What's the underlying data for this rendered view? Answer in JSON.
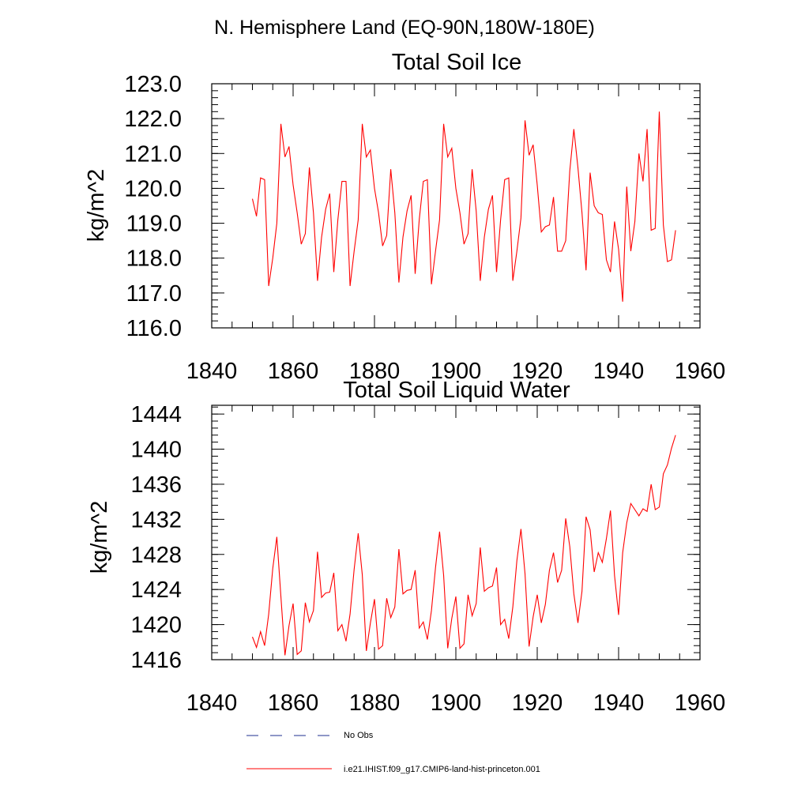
{
  "page_title": "N. Hemisphere Land (EQ-90N,180W-180E)",
  "colors": {
    "series": "#ff0000",
    "no_obs": "#1f2f8f",
    "axis": "#000000"
  },
  "legend": {
    "entries": [
      {
        "label": "No Obs",
        "style": "dashed",
        "color": "#1f2f8f"
      },
      {
        "label": "i.e21.IHIST.f09_g17.CMIP6-land-hist-princeton.001",
        "style": "solid",
        "color": "#ff0000"
      }
    ]
  },
  "chart_data": [
    {
      "type": "line",
      "title": "Total Soil Ice",
      "xlabel": "",
      "ylabel": "kg/m^2",
      "xlim": [
        1840,
        1960
      ],
      "ylim": [
        116,
        123
      ],
      "x_ticks": [
        1840,
        1860,
        1880,
        1900,
        1920,
        1940,
        1960
      ],
      "y_ticks": [
        "116.0",
        "117.0",
        "118.0",
        "119.0",
        "120.0",
        "121.0",
        "122.0",
        "123.0"
      ],
      "grid": false,
      "x": [
        1850,
        1851,
        1852,
        1853,
        1854,
        1855,
        1856,
        1857,
        1858,
        1859,
        1860,
        1861,
        1862,
        1863,
        1864,
        1865,
        1866,
        1867,
        1868,
        1869,
        1870,
        1871,
        1872,
        1873,
        1874,
        1875,
        1876,
        1877,
        1878,
        1879,
        1880,
        1881,
        1882,
        1883,
        1884,
        1885,
        1886,
        1887,
        1888,
        1889,
        1890,
        1891,
        1892,
        1893,
        1894,
        1895,
        1896,
        1897,
        1898,
        1899,
        1900,
        1901,
        1902,
        1903,
        1904,
        1905,
        1906,
        1907,
        1908,
        1909,
        1910,
        1911,
        1912,
        1913,
        1914,
        1915,
        1916,
        1917,
        1918,
        1919,
        1920,
        1921,
        1922,
        1923,
        1924,
        1925,
        1926,
        1927,
        1928,
        1929,
        1930,
        1931,
        1932,
        1933,
        1934,
        1935,
        1936,
        1937,
        1938,
        1939,
        1940,
        1941,
        1942,
        1943,
        1944,
        1945,
        1946,
        1947,
        1948,
        1949,
        1950,
        1951,
        1952,
        1953,
        1954
      ],
      "series": [
        {
          "color": "#ff0000",
          "values": [
            119.7,
            119.2,
            120.3,
            120.25,
            117.2,
            118.0,
            119.0,
            121.85,
            120.9,
            121.2,
            120.1,
            119.3,
            118.4,
            118.7,
            120.6,
            119.3,
            117.35,
            118.6,
            119.4,
            119.85,
            117.6,
            119.1,
            120.2,
            120.2,
            117.2,
            118.2,
            119.1,
            121.85,
            120.9,
            121.1,
            120.0,
            119.3,
            118.35,
            118.65,
            120.55,
            119.3,
            117.3,
            118.6,
            119.35,
            119.8,
            117.55,
            119.1,
            120.2,
            120.25,
            117.25,
            118.2,
            119.1,
            121.85,
            120.9,
            121.15,
            120.0,
            119.3,
            118.4,
            118.7,
            120.55,
            119.35,
            117.35,
            118.6,
            119.4,
            119.8,
            117.6,
            119.1,
            120.25,
            120.3,
            117.35,
            118.2,
            119.15,
            121.95,
            120.95,
            121.25,
            120.1,
            118.75,
            118.9,
            118.95,
            119.75,
            118.2,
            118.2,
            118.5,
            120.5,
            121.7,
            120.6,
            119.3,
            117.65,
            120.45,
            119.5,
            119.3,
            119.25,
            117.95,
            117.6,
            119.05,
            118.25,
            116.75,
            120.05,
            118.2,
            119.05,
            121.0,
            120.2,
            121.7,
            118.8,
            118.85,
            122.2,
            118.95,
            117.9,
            117.95,
            118.8
          ]
        }
      ]
    },
    {
      "type": "line",
      "title": "Total Soil Liquid Water",
      "xlabel": "",
      "ylabel": "kg/m^2",
      "xlim": [
        1840,
        1960
      ],
      "ylim": [
        1416,
        1445
      ],
      "x_ticks": [
        1840,
        1860,
        1880,
        1900,
        1920,
        1940,
        1960
      ],
      "y_ticks": [
        "1416",
        "1420",
        "1424",
        "1428",
        "1432",
        "1436",
        "1440",
        "1444"
      ],
      "grid": false,
      "x": [
        1850,
        1851,
        1852,
        1853,
        1854,
        1855,
        1856,
        1857,
        1858,
        1859,
        1860,
        1861,
        1862,
        1863,
        1864,
        1865,
        1866,
        1867,
        1868,
        1869,
        1870,
        1871,
        1872,
        1873,
        1874,
        1875,
        1876,
        1877,
        1878,
        1879,
        1880,
        1881,
        1882,
        1883,
        1884,
        1885,
        1886,
        1887,
        1888,
        1889,
        1890,
        1891,
        1892,
        1893,
        1894,
        1895,
        1896,
        1897,
        1898,
        1899,
        1900,
        1901,
        1902,
        1903,
        1904,
        1905,
        1906,
        1907,
        1908,
        1909,
        1910,
        1911,
        1912,
        1913,
        1914,
        1915,
        1916,
        1917,
        1918,
        1919,
        1920,
        1921,
        1922,
        1923,
        1924,
        1925,
        1926,
        1927,
        1928,
        1929,
        1930,
        1931,
        1932,
        1933,
        1934,
        1935,
        1936,
        1937,
        1938,
        1939,
        1940,
        1941,
        1942,
        1943,
        1944,
        1945,
        1946,
        1947,
        1948,
        1949,
        1950,
        1951,
        1952,
        1953,
        1954
      ],
      "series": [
        {
          "color": "#ff0000",
          "values": [
            1418.6,
            1417.4,
            1419.2,
            1417.6,
            1421.2,
            1426.4,
            1430.0,
            1423.2,
            1416.5,
            1419.9,
            1422.4,
            1416.6,
            1417.0,
            1422.5,
            1420.3,
            1421.6,
            1428.3,
            1423.1,
            1423.6,
            1423.7,
            1425.9,
            1419.3,
            1420.0,
            1418.1,
            1421.2,
            1426.3,
            1430.4,
            1425.7,
            1417.0,
            1420.2,
            1422.9,
            1417.2,
            1417.6,
            1423.0,
            1420.8,
            1422.0,
            1428.6,
            1423.5,
            1423.9,
            1424.0,
            1426.2,
            1419.6,
            1420.3,
            1418.3,
            1421.6,
            1426.5,
            1430.6,
            1425.6,
            1417.3,
            1420.7,
            1423.2,
            1417.3,
            1417.8,
            1423.4,
            1421.0,
            1422.4,
            1428.8,
            1423.8,
            1424.2,
            1424.4,
            1426.5,
            1420.0,
            1420.6,
            1418.4,
            1422.0,
            1427.3,
            1430.9,
            1425.8,
            1417.5,
            1420.9,
            1423.4,
            1420.2,
            1422.3,
            1426.2,
            1428.2,
            1424.8,
            1426.2,
            1432.1,
            1428.9,
            1423.5,
            1420.2,
            1423.8,
            1432.3,
            1430.8,
            1426.0,
            1428.2,
            1427.1,
            1429.8,
            1433.0,
            1425.6,
            1421.1,
            1428.2,
            1431.6,
            1433.8,
            1433.1,
            1432.4,
            1433.2,
            1432.9,
            1436.0,
            1433.1,
            1433.4,
            1437.2,
            1438.2,
            1440.1,
            1441.6
          ]
        }
      ]
    }
  ]
}
